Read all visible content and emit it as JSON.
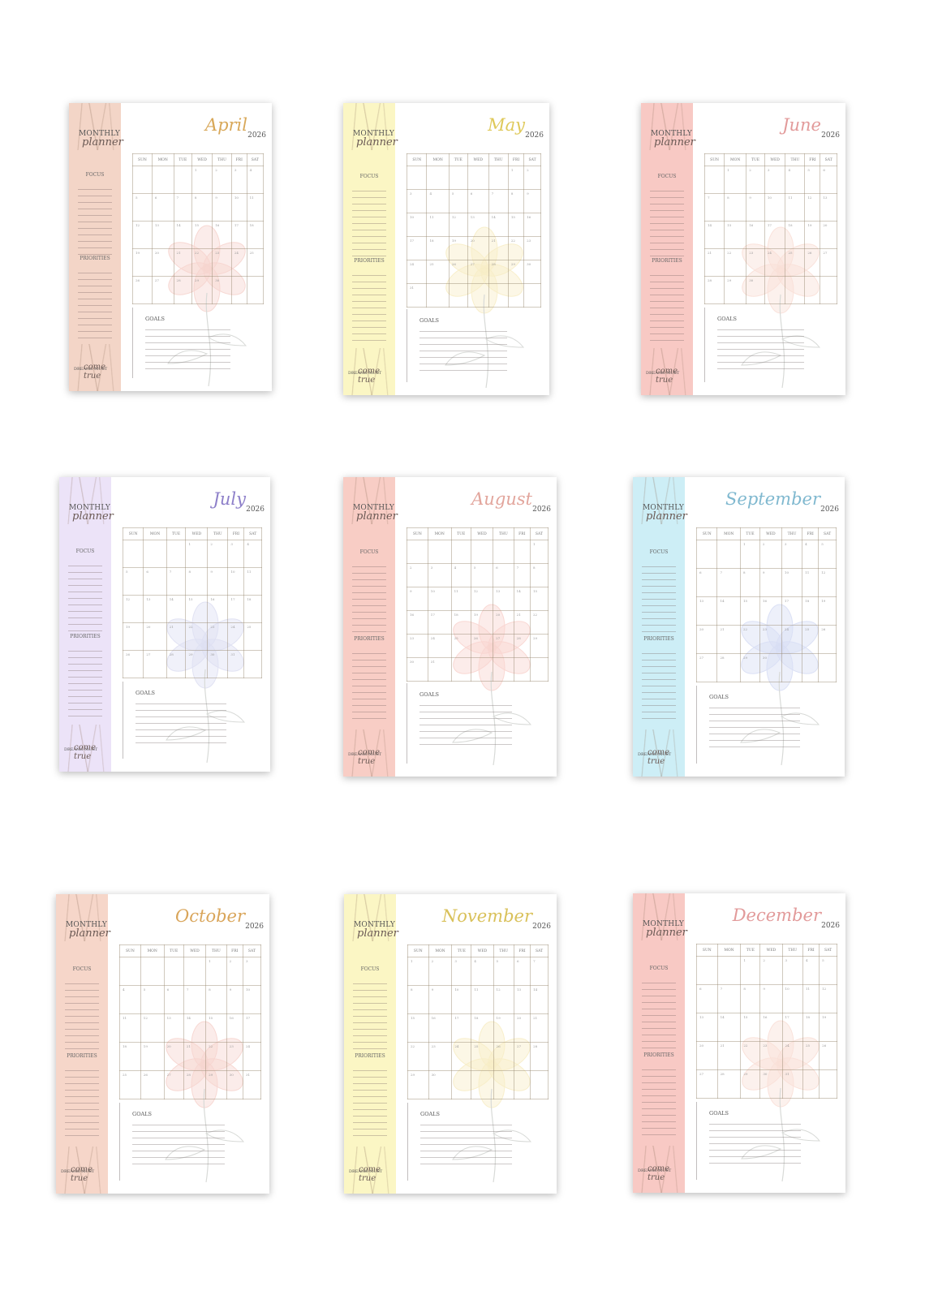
{
  "planner": {
    "heading_line1": "MONTHLY",
    "heading_line2": "planner",
    "focus_label": "FOCUS",
    "priorities_label": "PRIORITIES",
    "goals_label": "GOALS",
    "motto_line1": "DREAMS MUST",
    "motto_line2": "come true",
    "weekdays": [
      "SUN",
      "MON",
      "TUE",
      "WED",
      "THU",
      "FRI",
      "SAT"
    ]
  },
  "pages": [
    {
      "month": "April",
      "year": "2026",
      "accent": "#f3d5c7",
      "month_color": "#d8a85a",
      "flower_color": "#f0b3a8",
      "first_day": 3,
      "days": 30
    },
    {
      "month": "May",
      "year": "2026",
      "accent": "#fbf6c4",
      "month_color": "#dfc95a",
      "flower_color": "#f2df9a",
      "first_day": 5,
      "days": 31
    },
    {
      "month": "June",
      "year": "2026",
      "accent": "#f8c9c4",
      "month_color": "#e29a9a",
      "flower_color": "#f5c7b8",
      "first_day": 1,
      "days": 30
    },
    {
      "month": "July",
      "year": "2026",
      "accent": "#ece3f8",
      "month_color": "#8d7fc9",
      "flower_color": "#c4c7e8",
      "first_day": 3,
      "days": 31
    },
    {
      "month": "August",
      "year": "2026",
      "accent": "#f8cdc5",
      "month_color": "#e2a59c",
      "flower_color": "#f4b3aa",
      "first_day": 6,
      "days": 31
    },
    {
      "month": "September",
      "year": "2026",
      "accent": "#cdeef6",
      "month_color": "#7fb8cf",
      "flower_color": "#b9c4ec",
      "first_day": 2,
      "days": 30
    },
    {
      "month": "October",
      "year": "2026",
      "accent": "#f6d6c9",
      "month_color": "#d9a55a",
      "flower_color": "#f0b3a8",
      "first_day": 4,
      "days": 31
    },
    {
      "month": "November",
      "year": "2026",
      "accent": "#fbf6c4",
      "month_color": "#d9c15a",
      "flower_color": "#f2df9a",
      "first_day": 0,
      "days": 30
    },
    {
      "month": "December",
      "year": "2026",
      "accent": "#f8c9c4",
      "month_color": "#e29a9a",
      "flower_color": "#f5c7b8",
      "first_day": 2,
      "days": 31
    }
  ]
}
